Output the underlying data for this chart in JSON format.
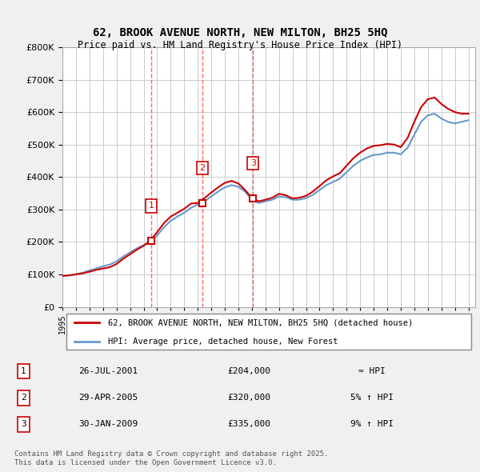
{
  "title": "62, BROOK AVENUE NORTH, NEW MILTON, BH25 5HQ",
  "subtitle": "Price paid vs. HM Land Registry's House Price Index (HPI)",
  "ylabel": "",
  "ylim": [
    0,
    800000
  ],
  "yticks": [
    0,
    100000,
    200000,
    300000,
    400000,
    500000,
    600000,
    700000,
    800000
  ],
  "background_color": "#f0f0f0",
  "plot_bg_color": "#ffffff",
  "grid_color": "#cccccc",
  "sale_dates": [
    "2001-07-26",
    "2005-04-29",
    "2009-01-30"
  ],
  "sale_prices": [
    204000,
    320000,
    335000
  ],
  "sale_labels": [
    "1",
    "2",
    "3"
  ],
  "sale_label_dates": [
    2001.57,
    2005.33,
    2009.08
  ],
  "legend_label_house": "62, BROOK AVENUE NORTH, NEW MILTON, BH25 5HQ (detached house)",
  "legend_label_hpi": "HPI: Average price, detached house, New Forest",
  "table_data": [
    [
      "1",
      "26-JUL-2001",
      "£204,000",
      "≈ HPI"
    ],
    [
      "2",
      "29-APR-2005",
      "£320,000",
      "5% ↑ HPI"
    ],
    [
      "3",
      "30-JAN-2009",
      "£335,000",
      "9% ↑ HPI"
    ]
  ],
  "footer": "Contains HM Land Registry data © Crown copyright and database right 2025.\nThis data is licensed under the Open Government Licence v3.0.",
  "house_color": "#cc0000",
  "hpi_color": "#6699cc",
  "vline_color": "#ff6666",
  "hpi_data_x": [
    1995.0,
    1995.5,
    1996.0,
    1996.5,
    1997.0,
    1997.5,
    1998.0,
    1998.5,
    1999.0,
    1999.5,
    2000.0,
    2000.5,
    2001.0,
    2001.5,
    2002.0,
    2002.5,
    2003.0,
    2003.5,
    2004.0,
    2004.5,
    2005.0,
    2005.5,
    2006.0,
    2006.5,
    2007.0,
    2007.5,
    2008.0,
    2008.5,
    2009.0,
    2009.5,
    2010.0,
    2010.5,
    2011.0,
    2011.5,
    2012.0,
    2012.5,
    2013.0,
    2013.5,
    2014.0,
    2014.5,
    2015.0,
    2015.5,
    2016.0,
    2016.5,
    2017.0,
    2017.5,
    2018.0,
    2018.5,
    2019.0,
    2019.5,
    2020.0,
    2020.5,
    2021.0,
    2021.5,
    2022.0,
    2022.5,
    2023.0,
    2023.5,
    2024.0,
    2024.5,
    2025.0
  ],
  "hpi_data_y": [
    95000,
    97000,
    100000,
    105000,
    112000,
    118000,
    125000,
    130000,
    140000,
    155000,
    168000,
    180000,
    190000,
    200000,
    220000,
    245000,
    265000,
    278000,
    290000,
    305000,
    315000,
    325000,
    340000,
    355000,
    368000,
    375000,
    370000,
    355000,
    330000,
    320000,
    325000,
    330000,
    340000,
    338000,
    330000,
    330000,
    335000,
    345000,
    360000,
    375000,
    385000,
    395000,
    415000,
    435000,
    450000,
    460000,
    468000,
    470000,
    475000,
    475000,
    470000,
    490000,
    530000,
    570000,
    590000,
    595000,
    580000,
    570000,
    565000,
    570000,
    575000
  ],
  "house_data_x": [
    1995.0,
    1995.5,
    1996.0,
    1996.5,
    1997.0,
    1997.5,
    1998.0,
    1998.5,
    1999.0,
    1999.5,
    2000.0,
    2000.5,
    2001.0,
    2001.5,
    2002.0,
    2002.5,
    2003.0,
    2003.5,
    2004.0,
    2004.5,
    2005.0,
    2005.5,
    2006.0,
    2006.5,
    2007.0,
    2007.5,
    2008.0,
    2008.5,
    2009.0,
    2009.5,
    2010.0,
    2010.5,
    2011.0,
    2011.5,
    2012.0,
    2012.5,
    2013.0,
    2013.5,
    2014.0,
    2014.5,
    2015.0,
    2015.5,
    2016.0,
    2016.5,
    2017.0,
    2017.5,
    2018.0,
    2018.5,
    2019.0,
    2019.5,
    2020.0,
    2020.5,
    2021.0,
    2021.5,
    2022.0,
    2022.5,
    2023.0,
    2023.5,
    2024.0,
    2024.5,
    2025.0
  ],
  "house_data_y": [
    95000,
    97000,
    100000,
    103000,
    108000,
    114000,
    118000,
    122000,
    132000,
    148000,
    162000,
    176000,
    188000,
    204000,
    230000,
    258000,
    278000,
    290000,
    302000,
    318000,
    320000,
    335000,
    352000,
    368000,
    382000,
    388000,
    380000,
    360000,
    335000,
    325000,
    330000,
    336000,
    348000,
    344000,
    334000,
    336000,
    342000,
    355000,
    372000,
    390000,
    402000,
    412000,
    435000,
    458000,
    475000,
    488000,
    496000,
    498000,
    502000,
    500000,
    492000,
    520000,
    570000,
    615000,
    640000,
    645000,
    625000,
    610000,
    600000,
    595000,
    595000
  ]
}
